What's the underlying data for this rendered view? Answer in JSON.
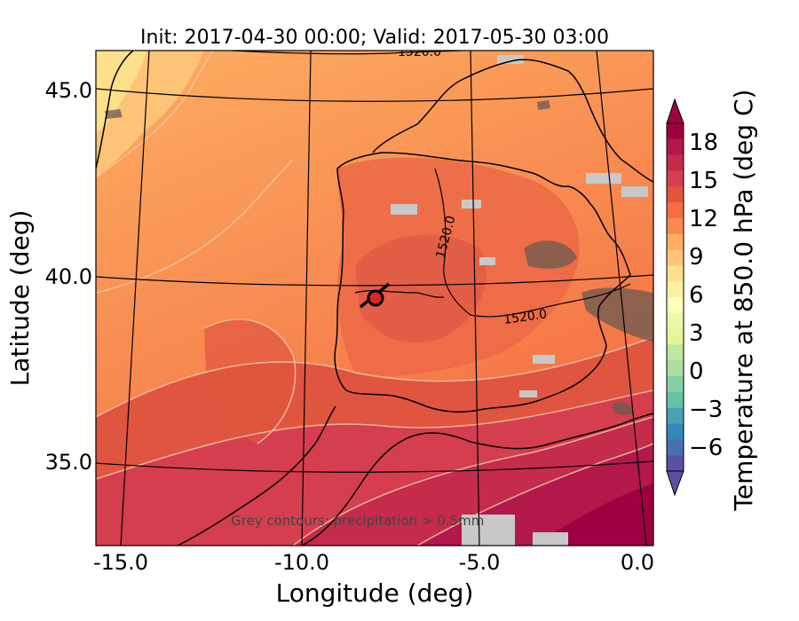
{
  "title": "Init: 2017-04-30 00:00; Valid: 2017-05-30 03:00",
  "xaxis": {
    "label": "Longitude (deg)",
    "ticks": [
      "-15.0",
      "-10.0",
      "-5.0",
      "0.0"
    ]
  },
  "yaxis": {
    "label": "Latitude (deg)",
    "ticks": [
      "45.0",
      "40.0",
      "35.0"
    ]
  },
  "colorbar": {
    "label": "Temperature at 850.0 hPa (deg C)",
    "ticks": [
      "18",
      "15",
      "12",
      "9",
      "6",
      "3",
      "0",
      "−3",
      "−6"
    ],
    "colors": [
      "#9e0142",
      "#b3184a",
      "#c52b4b",
      "#d53e4f",
      "#e0553f",
      "#f46d43",
      "#f68a51",
      "#fdae61",
      "#fec57a",
      "#fee08b",
      "#fef0a2",
      "#ffffbf",
      "#eef8a9",
      "#e6f598",
      "#c2e59f",
      "#abdda4",
      "#86cfa5",
      "#66c2a5",
      "#4a9fb5",
      "#3288bd",
      "#4a6fb0",
      "#5e4fa2"
    ]
  },
  "contour_labels": [
    "1520.0",
    "1520.0",
    "1520.0"
  ],
  "note": "Grey contours: precipitation > 0.5mm",
  "colors": {
    "hot": "#9e0142",
    "warm": "#d53e4f",
    "mid": "#f46d43",
    "light": "#fdae61",
    "pale": "#fee08b",
    "marker": "#d62728",
    "precip": "#c8c8c8"
  }
}
